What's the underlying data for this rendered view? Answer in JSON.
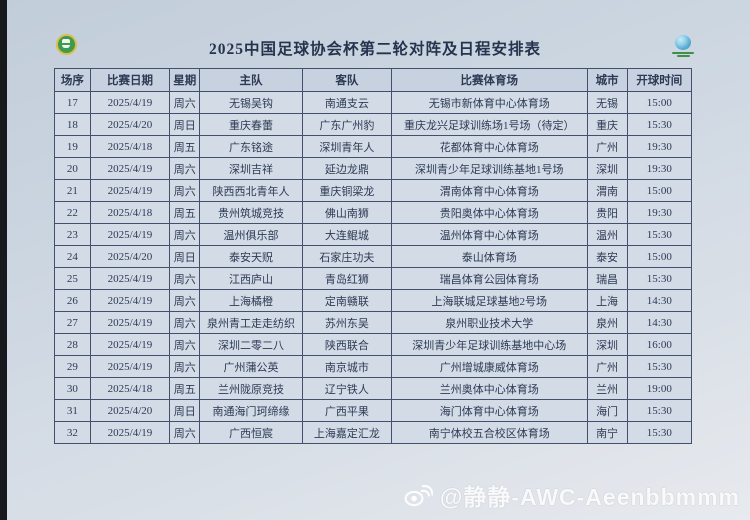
{
  "page": {
    "title": "2025中国足球协会杯第二轮对阵及日程安排表",
    "watermark": "@静静-AWC-Aeenbbmmm"
  },
  "icons": {
    "left_logo": "cfa-green-badge",
    "right_logo": "cfa-cup-logo",
    "watermark_icon": "weibo-eye-icon"
  },
  "colors": {
    "background": "#ccd6e1",
    "table_border": "#42516b",
    "text": "#2d3a54",
    "header_bg": "#c7d1df",
    "cell_bg": "#d2dbe6",
    "badge_green": "#3d9a4e",
    "badge_gold": "#dcbd49",
    "watermark_text": "#ffffff"
  },
  "table": {
    "headers": [
      "场序",
      "比赛日期",
      "星期",
      "主队",
      "客队",
      "比赛体育场",
      "城市",
      "开球时间"
    ],
    "rows": [
      [
        "17",
        "2025/4/19",
        "周六",
        "无锡吴钩",
        "南通支云",
        "无锡市新体育中心体育场",
        "无锡",
        "15:00"
      ],
      [
        "18",
        "2025/4/20",
        "周日",
        "重庆春蕾",
        "广东广州豹",
        "重庆龙兴足球训练场1号场（待定）",
        "重庆",
        "15:30"
      ],
      [
        "19",
        "2025/4/18",
        "周五",
        "广东铭途",
        "深圳青年人",
        "花都体育中心体育场",
        "广州",
        "19:30"
      ],
      [
        "20",
        "2025/4/19",
        "周六",
        "深圳吉祥",
        "延边龙鼎",
        "深圳青少年足球训练基地1号场",
        "深圳",
        "19:30"
      ],
      [
        "21",
        "2025/4/19",
        "周六",
        "陕西西北青年人",
        "重庆铜梁龙",
        "渭南体育中心体育场",
        "渭南",
        "15:00"
      ],
      [
        "22",
        "2025/4/18",
        "周五",
        "贵州筑城竞技",
        "佛山南狮",
        "贵阳奥体中心体育场",
        "贵阳",
        "19:30"
      ],
      [
        "23",
        "2025/4/19",
        "周六",
        "温州俱乐部",
        "大连鲲城",
        "温州体育中心体育场",
        "温州",
        "15:30"
      ],
      [
        "24",
        "2025/4/20",
        "周日",
        "泰安天贶",
        "石家庄功夫",
        "泰山体育场",
        "泰安",
        "15:00"
      ],
      [
        "25",
        "2025/4/19",
        "周六",
        "江西庐山",
        "青岛红狮",
        "瑞昌体育公园体育场",
        "瑞昌",
        "15:30"
      ],
      [
        "26",
        "2025/4/19",
        "周六",
        "上海橘橙",
        "定南赣联",
        "上海联城足球基地2号场",
        "上海",
        "14:30"
      ],
      [
        "27",
        "2025/4/19",
        "周六",
        "泉州青工走走纺织",
        "苏州东吴",
        "泉州职业技术大学",
        "泉州",
        "14:30"
      ],
      [
        "28",
        "2025/4/19",
        "周六",
        "深圳二零二八",
        "陕西联合",
        "深圳青少年足球训练基地中心场",
        "深圳",
        "16:00"
      ],
      [
        "29",
        "2025/4/19",
        "周六",
        "广州蒲公英",
        "南京城市",
        "广州增城康威体育场",
        "广州",
        "15:30"
      ],
      [
        "30",
        "2025/4/18",
        "周五",
        "兰州陇原竞技",
        "辽宁铁人",
        "兰州奥体中心体育场",
        "兰州",
        "19:00"
      ],
      [
        "31",
        "2025/4/20",
        "周日",
        "南通海门珂缔缘",
        "广西平果",
        "海门体育中心体育场",
        "海门",
        "15:30"
      ],
      [
        "32",
        "2025/4/19",
        "周六",
        "广西恒宸",
        "上海嘉定汇龙",
        "南宁体校五合校区体育场",
        "南宁",
        "15:30"
      ]
    ]
  }
}
